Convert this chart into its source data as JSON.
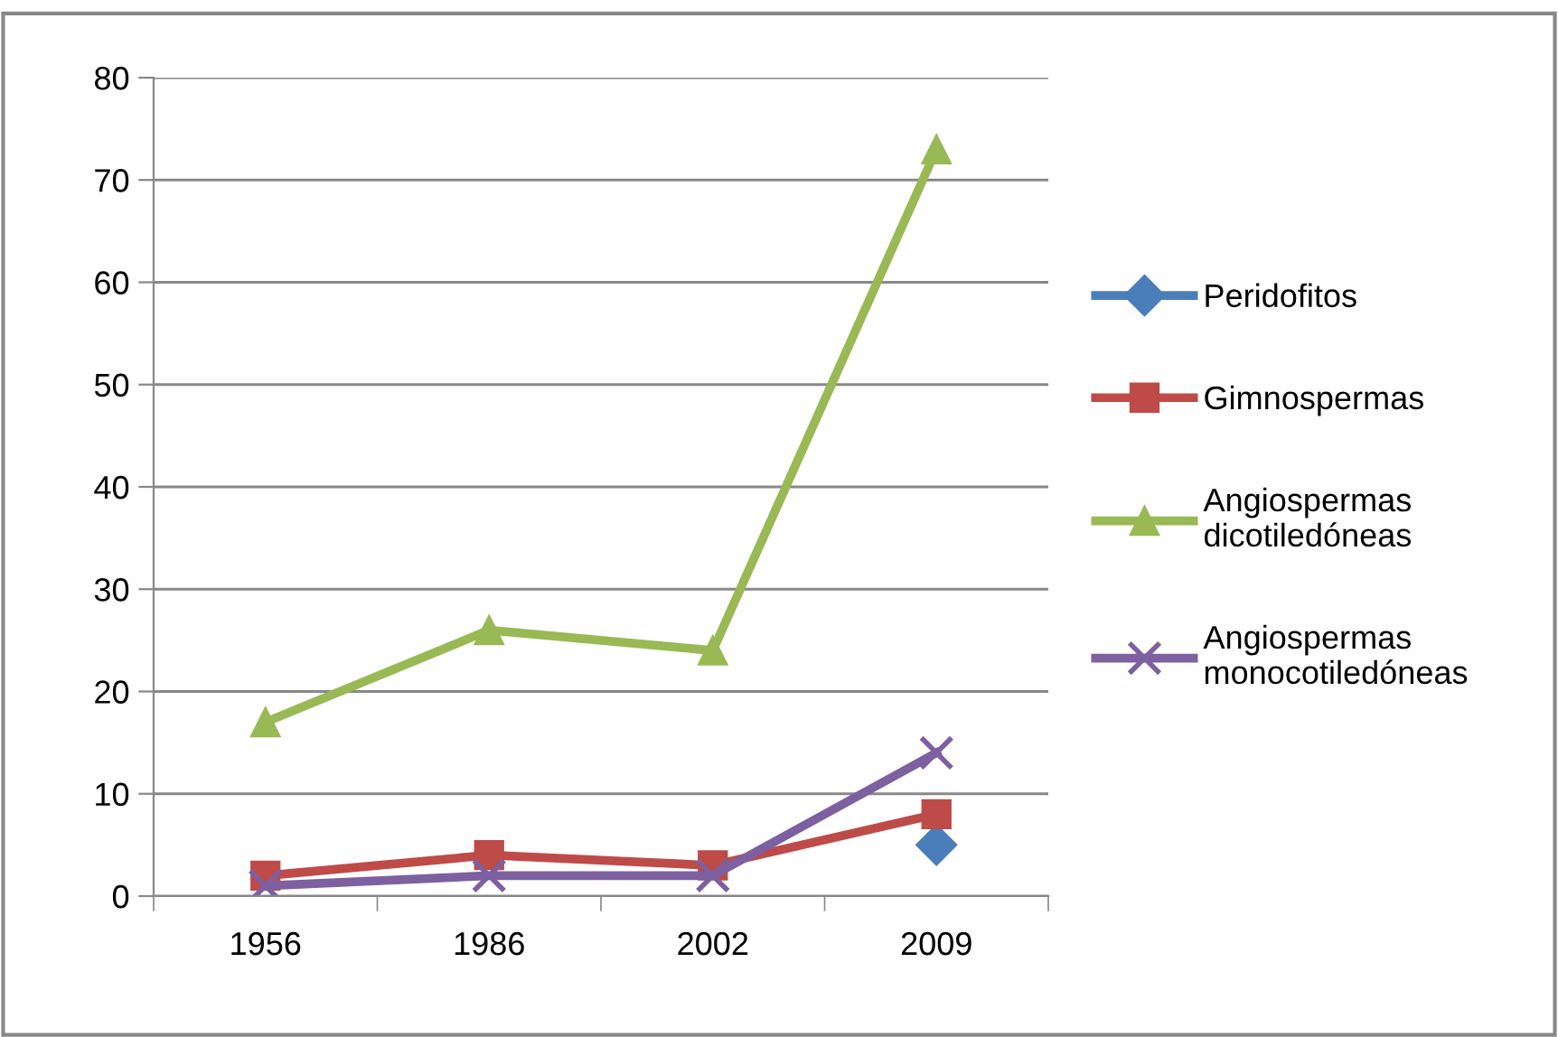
{
  "chart_data": {
    "type": "line",
    "categories": [
      "1956",
      "1986",
      "2002",
      "2009"
    ],
    "series": [
      {
        "name": "Peridofitos",
        "color": "#4a7ebb",
        "marker": "diamond",
        "values": [
          null,
          null,
          null,
          5
        ]
      },
      {
        "name": "Gimnospermas",
        "color": "#be4b48",
        "marker": "square",
        "values": [
          2,
          4,
          3,
          8
        ]
      },
      {
        "name": "Angiospermas dicotiledóneas",
        "color": "#98b954",
        "marker": "triangle",
        "values": [
          17,
          26,
          24,
          73
        ]
      },
      {
        "name": "Angiospermas monocotiledóneas",
        "color": "#7d60a0",
        "marker": "cross",
        "values": [
          1,
          2,
          2,
          14
        ]
      }
    ],
    "ylim": [
      0,
      80
    ],
    "yticks": [
      0,
      10,
      20,
      30,
      40,
      50,
      60,
      70,
      80
    ],
    "grid": "y",
    "legend": "right",
    "line_style": "solid"
  }
}
